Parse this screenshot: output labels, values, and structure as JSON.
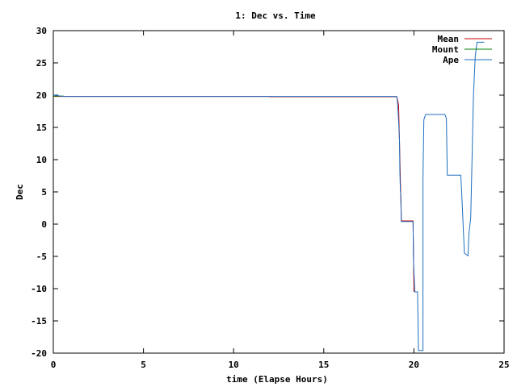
{
  "chart_data": {
    "type": "line",
    "title": "1: Dec vs. Time",
    "xlabel": "time (Elapse Hours)",
    "ylabel": "Dec",
    "xlim": [
      0,
      25
    ],
    "ylim": [
      -20,
      30
    ],
    "xticks": [
      0,
      5,
      10,
      15,
      20,
      25
    ],
    "yticks": [
      30,
      25,
      20,
      15,
      10,
      5,
      0,
      -5,
      -10,
      -15,
      -20
    ],
    "grid": false,
    "legend_position": "top-right",
    "series": [
      {
        "name": "Mean",
        "color": "#cc0000",
        "points": [
          [
            0,
            19.8
          ],
          [
            12.0,
            19.8
          ],
          [
            12.0,
            19.75
          ],
          [
            19.05,
            19.75
          ],
          [
            19.15,
            18.5
          ],
          [
            19.2,
            13
          ],
          [
            19.3,
            0.5
          ],
          [
            19.95,
            0.5
          ],
          [
            20.0,
            -10.5
          ]
        ]
      },
      {
        "name": "Mount",
        "color": "#008000",
        "points": [
          [
            0,
            19.85
          ],
          [
            0.6,
            19.85
          ]
        ]
      },
      {
        "name": "Ape",
        "color": "#1f6fbf",
        "points": [
          [
            0,
            20.0
          ],
          [
            0.6,
            19.8
          ],
          [
            19.05,
            19.8
          ],
          [
            19.1,
            18.5
          ],
          [
            19.15,
            16
          ],
          [
            19.2,
            13
          ],
          [
            19.22,
            8
          ],
          [
            19.25,
            5
          ],
          [
            19.28,
            4.5
          ],
          [
            19.3,
            0.4
          ],
          [
            19.95,
            0.4
          ],
          [
            19.98,
            -6
          ],
          [
            20.05,
            -10.5
          ],
          [
            20.2,
            -10.5
          ],
          [
            20.25,
            -19.6
          ],
          [
            20.5,
            -19.6
          ],
          [
            20.5,
            7
          ],
          [
            20.55,
            16.2
          ],
          [
            20.6,
            16.6
          ],
          [
            20.65,
            17
          ],
          [
            21.7,
            17
          ],
          [
            21.75,
            16.8
          ],
          [
            21.8,
            16.3
          ],
          [
            21.85,
            7.6
          ],
          [
            22.6,
            7.6
          ],
          [
            22.65,
            5
          ],
          [
            22.75,
            -1.5
          ],
          [
            22.8,
            -4.5
          ],
          [
            22.9,
            -4.7
          ],
          [
            23.0,
            -4.9
          ],
          [
            23.05,
            -1.5
          ],
          [
            23.15,
            1
          ],
          [
            23.2,
            7
          ],
          [
            23.3,
            20
          ],
          [
            23.4,
            26
          ],
          [
            23.5,
            28.2
          ],
          [
            23.9,
            28.2
          ]
        ]
      }
    ]
  }
}
